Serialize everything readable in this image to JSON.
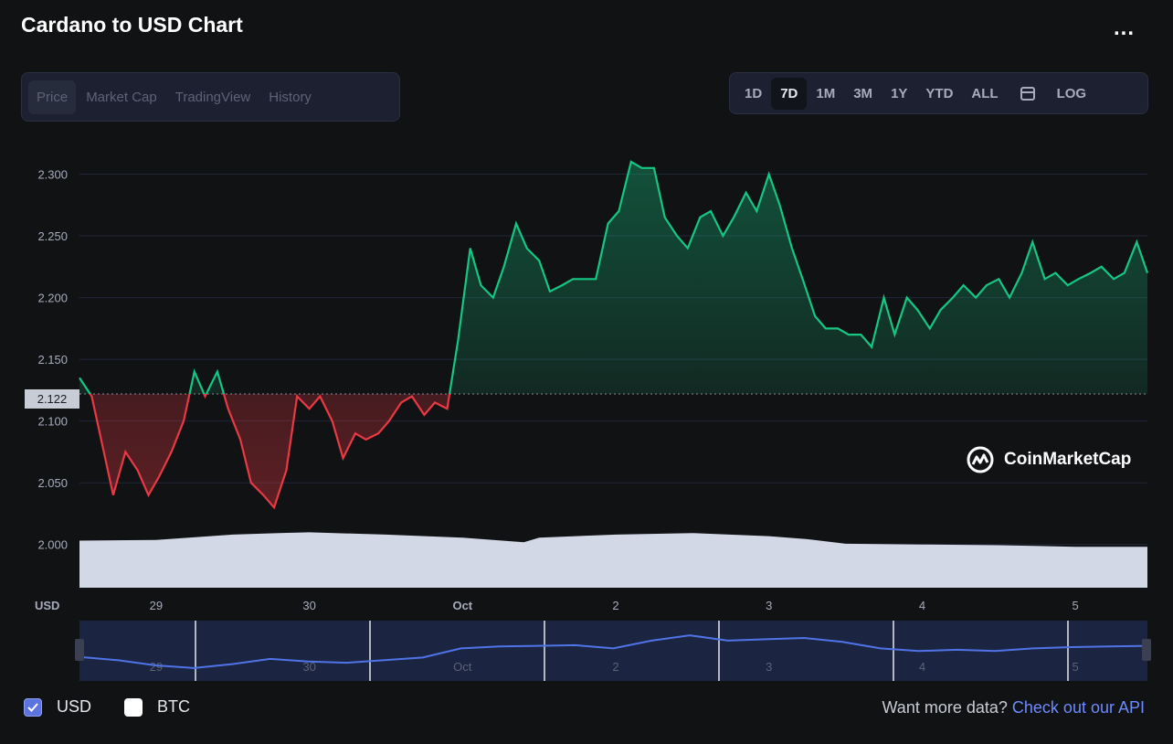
{
  "header": {
    "title": "Cardano to USD Chart",
    "more_label": "..."
  },
  "tabs": [
    "Price",
    "Market Cap",
    "TradingView",
    "History"
  ],
  "ranges": [
    "1D",
    "7D",
    "1M",
    "3M",
    "1Y",
    "YTD",
    "ALL"
  ],
  "log_label": "LOG",
  "active_range": "7D",
  "active_tab": "Price",
  "current_price_label": "2.122",
  "currency_axis_label": "USD",
  "brand": "CoinMarketCap",
  "footer": {
    "usd_label": "USD",
    "btc_label": "BTC",
    "more_data_text": "Want more data?",
    "api_link_text": "Check out our API"
  },
  "colors": {
    "up": "#16c784",
    "down": "#ea3943",
    "accent": "#6d8bff",
    "volume": "#d2d8e6"
  },
  "chart_data": {
    "type": "line",
    "title": "Cardano to USD Chart",
    "ylabel": "USD",
    "ylim": [
      1.965,
      2.33
    ],
    "yticks": [
      "2.000",
      "2.050",
      "2.100",
      "2.150",
      "2.200",
      "2.250",
      "2.300"
    ],
    "ytick_values": [
      2.0,
      2.05,
      2.1,
      2.15,
      2.2,
      2.25,
      2.3
    ],
    "xticks": [
      "29",
      "30",
      "Oct",
      "2",
      "3",
      "4",
      "5"
    ],
    "xtick_positions": [
      0.5,
      1.5,
      2.5,
      3.5,
      4.5,
      5.5,
      6.5
    ],
    "xlim": [
      0,
      6.97
    ],
    "baseline": 2.122,
    "series": [
      {
        "x": [
          0.0,
          0.08,
          0.15,
          0.22,
          0.3,
          0.38,
          0.45,
          0.52,
          0.6,
          0.68,
          0.75,
          0.82,
          0.9,
          0.97,
          1.05,
          1.12,
          1.2,
          1.27,
          1.35,
          1.42,
          1.5,
          1.57,
          1.65,
          1.72,
          1.8,
          1.87,
          1.95,
          2.02,
          2.1,
          2.17,
          2.25,
          2.32,
          2.4,
          2.47,
          2.55,
          2.62,
          2.7,
          2.77,
          2.85,
          2.92,
          3.0,
          3.07,
          3.15,
          3.22,
          3.3,
          3.37,
          3.45,
          3.52,
          3.6,
          3.67,
          3.75,
          3.82,
          3.9,
          3.97,
          4.05,
          4.12,
          4.2,
          4.27,
          4.35,
          4.42,
          4.5,
          4.57,
          4.65,
          4.72,
          4.8,
          4.87,
          4.95,
          5.02,
          5.1,
          5.17,
          5.25,
          5.32,
          5.4,
          5.47,
          5.55,
          5.62,
          5.7,
          5.77,
          5.85,
          5.92,
          6.0,
          6.07,
          6.15,
          6.22,
          6.3,
          6.37,
          6.45,
          6.52,
          6.6,
          6.67,
          6.75,
          6.82,
          6.9,
          6.97
        ],
        "y": [
          2.135,
          2.12,
          2.08,
          2.04,
          2.075,
          2.06,
          2.04,
          2.055,
          2.075,
          2.1,
          2.14,
          2.12,
          2.14,
          2.11,
          2.085,
          2.05,
          2.04,
          2.03,
          2.06,
          2.12,
          2.11,
          2.12,
          2.1,
          2.07,
          2.09,
          2.085,
          2.09,
          2.1,
          2.115,
          2.12,
          2.105,
          2.115,
          2.11,
          2.165,
          2.24,
          2.21,
          2.2,
          2.225,
          2.26,
          2.24,
          2.23,
          2.205,
          2.21,
          2.215,
          2.215,
          2.215,
          2.26,
          2.27,
          2.31,
          2.305,
          2.305,
          2.265,
          2.25,
          2.24,
          2.265,
          2.27,
          2.25,
          2.265,
          2.285,
          2.27,
          2.3,
          2.275,
          2.24,
          2.215,
          2.185,
          2.175,
          2.175,
          2.17,
          2.17,
          2.16,
          2.2,
          2.17,
          2.2,
          2.19,
          2.175,
          2.19,
          2.2,
          2.21,
          2.2,
          2.21,
          2.215,
          2.2,
          2.22,
          2.245,
          2.215,
          2.22,
          2.21,
          2.215,
          2.22,
          2.225,
          2.215,
          2.22,
          2.245,
          2.22
        ]
      }
    ],
    "volume": {
      "x": [
        0.0,
        0.5,
        1.0,
        1.3,
        1.5,
        2.0,
        2.5,
        2.7,
        2.9,
        3.0,
        3.5,
        4.0,
        4.5,
        4.75,
        5.0,
        5.5,
        6.0,
        6.5,
        6.97
      ],
      "y": [
        0.62,
        0.63,
        0.7,
        0.72,
        0.73,
        0.7,
        0.66,
        0.63,
        0.6,
        0.66,
        0.7,
        0.72,
        0.68,
        0.64,
        0.58,
        0.57,
        0.56,
        0.54,
        0.54
      ]
    },
    "navigator": {
      "xticks": [
        "29",
        "30",
        "Oct",
        "2",
        "3",
        "4",
        "5"
      ],
      "y": [
        2.135,
        2.11,
        2.07,
        2.05,
        2.08,
        2.12,
        2.1,
        2.09,
        2.11,
        2.13,
        2.2,
        2.215,
        2.22,
        2.225,
        2.2,
        2.26,
        2.3,
        2.26,
        2.27,
        2.28,
        2.25,
        2.2,
        2.18,
        2.19,
        2.18,
        2.2,
        2.21,
        2.215,
        2.22
      ]
    }
  }
}
